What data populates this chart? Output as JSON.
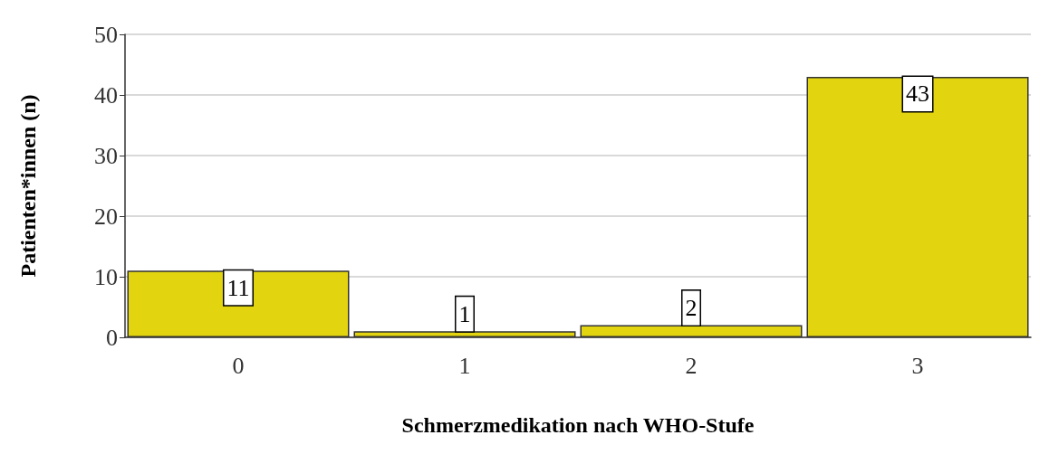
{
  "chart_data": {
    "type": "bar",
    "xlabel": "Schmerzmedikation nach WHO-Stufe",
    "ylabel": "Patienten*innen (n)",
    "categories": [
      "0",
      "1",
      "2",
      "3"
    ],
    "values": [
      11,
      1,
      2,
      43
    ],
    "color": "#e2d50f",
    "ylim": [
      0,
      50
    ],
    "yticks": [
      0,
      10,
      20,
      30,
      40,
      50
    ],
    "grid": "y",
    "data_labels": true
  }
}
